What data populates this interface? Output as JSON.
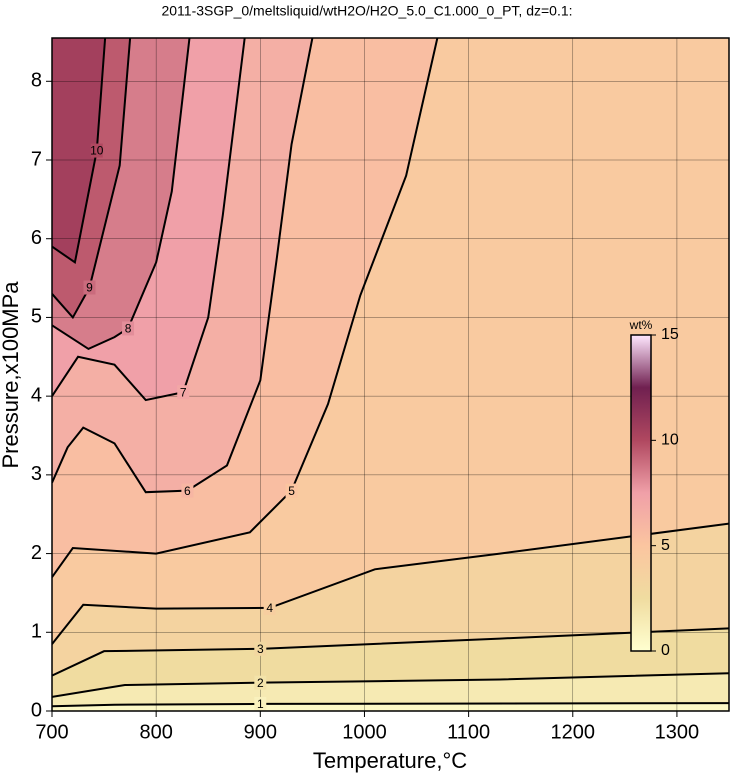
{
  "chart_data": {
    "type": "contour",
    "title": "2011-3SGP_0/meltsliquid/wtH2O/H2O_5.0_C1.000_0_PT, dz=0.1:",
    "xlabel": "Temperature,°C",
    "ylabel": "Pressure,x100MPa",
    "xlim": [
      700,
      1350
    ],
    "ylim": [
      0,
      8.55
    ],
    "xticks": [
      700,
      800,
      900,
      1000,
      1100,
      1200,
      1300
    ],
    "yticks": [
      0,
      1,
      2,
      3,
      4,
      5,
      6,
      7,
      8
    ],
    "grid": true,
    "line_color": "#000000",
    "colorscale": [
      "#ffffd0",
      "#f0dca0",
      "#fbc5a0",
      "#f0a0a8",
      "#b04860",
      "#702050",
      "#ffe8ff"
    ],
    "colorbar": {
      "label": "wt%",
      "lim": [
        0,
        15
      ],
      "ticks": [
        0,
        5,
        10,
        15
      ]
    },
    "contours": [
      {
        "level": 1,
        "x": [
          700,
          760,
          900,
          1350
        ],
        "y": [
          0.06,
          0.08,
          0.09,
          0.1
        ]
      },
      {
        "level": 2,
        "x": [
          700,
          770,
          900,
          1130,
          1350
        ],
        "y": [
          0.18,
          0.33,
          0.36,
          0.4,
          0.48
        ]
      },
      {
        "level": 3,
        "x": [
          700,
          750,
          900,
          1130,
          1350
        ],
        "y": [
          0.45,
          0.76,
          0.79,
          0.92,
          1.05
        ]
      },
      {
        "level": 4,
        "x": [
          700,
          730,
          800,
          909,
          1010,
          1130,
          1350
        ],
        "y": [
          0.85,
          1.35,
          1.3,
          1.31,
          1.8,
          2.0,
          2.38
        ]
      },
      {
        "level": 5,
        "x": [
          700,
          720,
          800,
          890,
          930,
          965,
          996,
          1040,
          1070
        ],
        "y": [
          1.7,
          2.07,
          2.0,
          2.27,
          2.8,
          3.9,
          5.28,
          6.8,
          8.55
        ]
      },
      {
        "level": 6,
        "x": [
          700,
          715,
          730,
          760,
          790,
          830,
          868,
          900,
          916,
          930,
          950
        ],
        "y": [
          2.9,
          3.35,
          3.6,
          3.4,
          2.78,
          2.8,
          3.12,
          4.2,
          5.77,
          7.2,
          8.55
        ]
      },
      {
        "level": 7,
        "x": [
          700,
          725,
          760,
          790,
          826,
          850,
          864,
          885
        ],
        "y": [
          4.0,
          4.5,
          4.4,
          3.95,
          4.05,
          5.0,
          6.3,
          8.55
        ]
      },
      {
        "level": 8,
        "x": [
          700,
          735,
          760,
          773,
          800,
          815,
          832
        ],
        "y": [
          4.9,
          4.6,
          4.75,
          4.86,
          5.7,
          6.6,
          8.55
        ]
      },
      {
        "level": 9,
        "x": [
          700,
          720,
          736,
          765,
          775
        ],
        "y": [
          5.3,
          5.0,
          5.38,
          6.93,
          8.55
        ]
      },
      {
        "level": 10,
        "x": [
          700,
          722,
          743,
          751
        ],
        "y": [
          5.9,
          5.7,
          7.12,
          8.55
        ]
      }
    ]
  }
}
